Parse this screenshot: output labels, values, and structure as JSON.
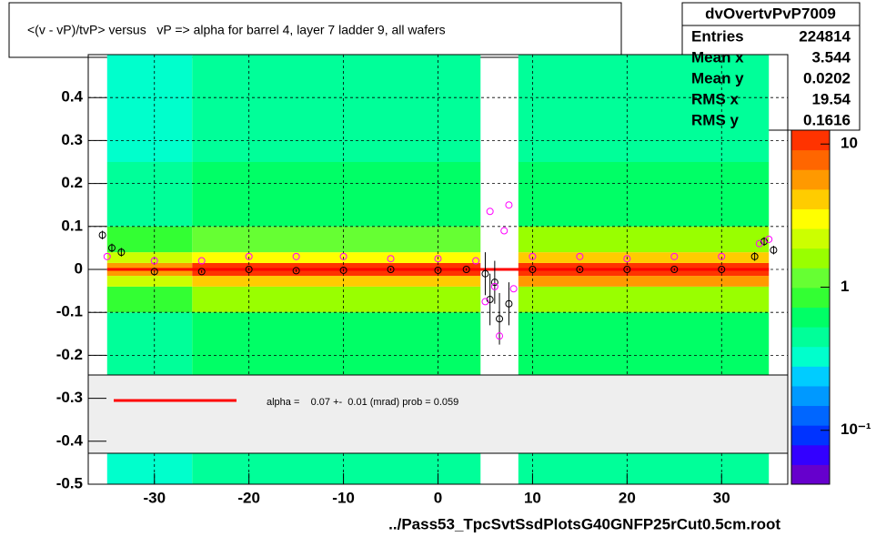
{
  "chart_data": {
    "type": "heatmap",
    "title": "<(v - vP)/tvP> versus   vP => alpha for barrel 4, layer 7 ladder 9, all wafers",
    "x_label": "../Pass53_TpcSvtSsdPlotsG40GNFP25rCut0.5cm.root",
    "xlim": [
      -37,
      37
    ],
    "ylim": [
      -0.5,
      0.5
    ],
    "xticks": [
      -30,
      -20,
      -10,
      0,
      10,
      20,
      30
    ],
    "yticks": [
      -0.5,
      -0.4,
      -0.3,
      -0.2,
      -0.1,
      0,
      0.1,
      0.2,
      0.3,
      0.4
    ],
    "grid": true,
    "zlim": [
      0.042,
      12.5
    ],
    "zscale": "log",
    "zticks": [
      {
        "value": 0.1,
        "label": "10⁻¹"
      },
      1,
      10
    ],
    "palette": [
      "#6600cc",
      "#3300ff",
      "#0033ff",
      "#0066ff",
      "#0099ff",
      "#00ccff",
      "#00ffcc",
      "#00ff99",
      "#00ff66",
      "#33ff33",
      "#66ff33",
      "#99ff00",
      "#ccff00",
      "#ffff00",
      "#ffcc00",
      "#ff9900",
      "#ff6600",
      "#ff3300"
    ],
    "xbins": [
      -35,
      -26,
      4.5,
      8.5,
      35
    ],
    "ybins": [
      -0.5,
      -0.25,
      -0.1,
      -0.04,
      -0.015,
      0.015,
      0.04,
      0.1,
      0.25,
      0.5
    ],
    "z": [
      [
        0.35,
        0.45,
        null,
        0.45
      ],
      [
        0.4,
        0.6,
        null,
        0.6
      ],
      [
        0.8,
        1.4,
        null,
        1.5
      ],
      [
        2.5,
        4,
        null,
        5
      ],
      [
        6,
        10,
        null,
        11
      ],
      [
        2,
        3.5,
        null,
        4
      ],
      [
        0.8,
        1.3,
        null,
        1.4
      ],
      [
        0.4,
        0.6,
        null,
        0.6
      ],
      [
        0.35,
        0.45,
        null,
        0.45
      ]
    ],
    "series": [
      {
        "name": "profile",
        "color": "#000000",
        "x": [
          -35.5,
          -34.5,
          -33.5,
          -30,
          -25,
          -20,
          -15,
          -10,
          -5,
          0,
          3,
          5,
          5.5,
          6,
          6.5,
          7.5,
          10,
          15,
          20,
          25,
          30,
          33.5,
          34.5,
          35.5
        ],
        "values": [
          0.08,
          0.05,
          0.04,
          -0.005,
          -0.005,
          0,
          -0.003,
          -0.002,
          0,
          -0.002,
          0,
          -0.01,
          -0.07,
          -0.03,
          -0.115,
          -0.08,
          0,
          0,
          0,
          0,
          0,
          0.03,
          0.065,
          0.045
        ],
        "errors": [
          0.01,
          0.01,
          0.01,
          0.003,
          0.003,
          0.003,
          0.003,
          0.003,
          0.003,
          0.003,
          0.003,
          0.05,
          0.06,
          0.05,
          0.06,
          0.05,
          0.003,
          0.003,
          0.003,
          0.003,
          0.003,
          0.01,
          0.01,
          0.01
        ]
      },
      {
        "name": "profile-mean",
        "color": "#ff00ff",
        "x": [
          -35,
          -30,
          -25,
          -20,
          -15,
          -10,
          -5,
          0,
          4,
          5,
          5.5,
          6,
          6.5,
          7,
          7.5,
          8,
          10,
          15,
          20,
          25,
          30,
          34,
          35
        ],
        "values": [
          0.03,
          0.02,
          0.02,
          0.03,
          0.03,
          0.03,
          0.025,
          0.025,
          0.02,
          -0.075,
          0.135,
          -0.04,
          -0.155,
          0.09,
          0.15,
          -0.045,
          0.03,
          0.03,
          0.025,
          0.03,
          0.03,
          0.06,
          0.07
        ]
      }
    ],
    "fit": {
      "color": "#ff0000",
      "x": [
        -35,
        35
      ],
      "values": [
        0,
        0
      ],
      "label": "alpha =    0.07 +-  0.01 (mrad) prob = 0.059"
    },
    "stats": {
      "name": "dvOvertvPvP7009",
      "rows": [
        [
          "Entries",
          224814
        ],
        [
          "Mean x",
          3.544
        ],
        [
          "Mean y",
          0.0202
        ],
        [
          "RMS x",
          19.54
        ],
        [
          "RMS y",
          0.1616
        ]
      ]
    }
  }
}
